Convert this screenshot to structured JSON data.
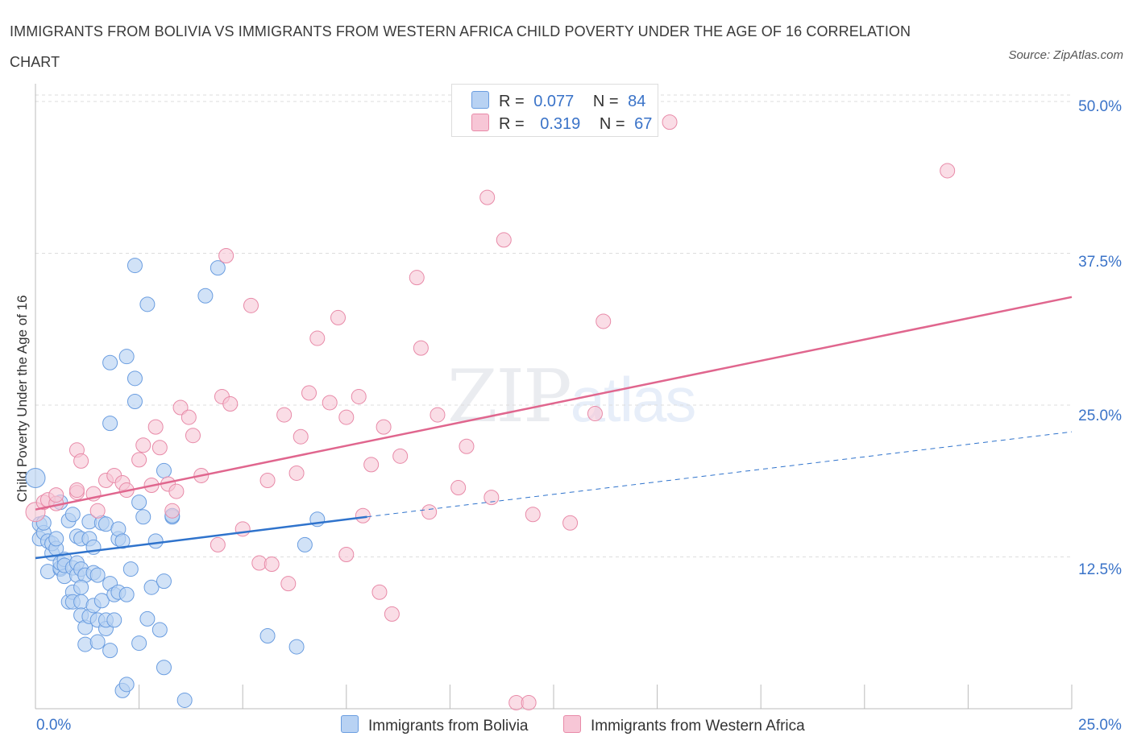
{
  "header": {
    "title": "IMMIGRANTS FROM BOLIVIA VS IMMIGRANTS FROM WESTERN AFRICA CHILD POVERTY UNDER THE AGE OF 16 CORRELATION CHART",
    "source": "Source: ZipAtlas.com"
  },
  "watermark": {
    "zip": "ZIP",
    "atlas": "atlas"
  },
  "legend": {
    "r_label": "R =",
    "n_label": "N =",
    "bolivia": {
      "r": "0.077",
      "n": "84"
    },
    "wafrica": {
      "r": "0.319",
      "n": "67"
    }
  },
  "bottom_legend": {
    "bolivia": "Immigrants from Bolivia",
    "wafrica": "Immigrants from Western Africa"
  },
  "colors": {
    "bolivia_fill": "#b8d2f3",
    "bolivia_stroke": "#6a9de0",
    "bolivia_line": "#2f73cc",
    "wafrica_fill": "#f7c6d6",
    "wafrica_stroke": "#e88aa8",
    "wafrica_line": "#e0668e",
    "grid": "#dddddd",
    "tick_text": "#3a73c8"
  },
  "chart_data": {
    "type": "scatter",
    "title": "IMMIGRANTS FROM BOLIVIA VS IMMIGRANTS FROM WESTERN AFRICA CHILD POVERTY UNDER THE AGE OF 16 CORRELATION CHART",
    "xlabel": "",
    "ylabel": "Child Poverty Under the Age of 16",
    "xlim": [
      0,
      25
    ],
    "ylim": [
      0,
      50
    ],
    "x_tick_labels": [
      "0.0%",
      "25.0%"
    ],
    "y_tick_labels": [
      "12.5%",
      "25.0%",
      "37.5%",
      "50.0%"
    ],
    "y_ticks": [
      12.5,
      25,
      37.5,
      50
    ],
    "grid": true,
    "series": [
      {
        "name": "Immigrants from Bolivia",
        "color": "#6a9de0",
        "trend": {
          "x0": 0,
          "y0": 12.4,
          "x1": 8,
          "y1": 15.8,
          "dashed_to_x": 25,
          "dashed_to_y": 22.8
        },
        "points": [
          [
            0.0,
            19.0
          ],
          [
            0.1,
            15.2
          ],
          [
            0.1,
            14.0
          ],
          [
            0.2,
            14.5
          ],
          [
            0.2,
            15.3
          ],
          [
            0.3,
            13.8
          ],
          [
            0.3,
            11.3
          ],
          [
            0.4,
            12.8
          ],
          [
            0.4,
            13.6
          ],
          [
            0.5,
            13.2
          ],
          [
            0.5,
            14.0
          ],
          [
            0.6,
            11.5
          ],
          [
            0.6,
            11.6
          ],
          [
            0.6,
            12.0
          ],
          [
            0.6,
            17.0
          ],
          [
            0.7,
            10.9
          ],
          [
            0.7,
            12.3
          ],
          [
            0.7,
            11.8
          ],
          [
            0.8,
            8.8
          ],
          [
            0.8,
            15.5
          ],
          [
            0.9,
            9.6
          ],
          [
            0.9,
            11.6
          ],
          [
            0.9,
            8.8
          ],
          [
            0.9,
            16.0
          ],
          [
            1.0,
            11.0
          ],
          [
            1.0,
            12.0
          ],
          [
            1.0,
            14.2
          ],
          [
            1.1,
            8.8
          ],
          [
            1.1,
            11.5
          ],
          [
            1.1,
            14.0
          ],
          [
            1.2,
            11.0
          ],
          [
            1.1,
            10.0
          ],
          [
            1.1,
            7.7
          ],
          [
            1.2,
            6.7
          ],
          [
            1.2,
            5.3
          ],
          [
            1.3,
            15.4
          ],
          [
            1.3,
            7.6
          ],
          [
            1.4,
            11.2
          ],
          [
            1.3,
            14.0
          ],
          [
            1.4,
            13.3
          ],
          [
            1.4,
            8.5
          ],
          [
            1.5,
            11.0
          ],
          [
            1.5,
            5.5
          ],
          [
            1.5,
            7.3
          ],
          [
            1.6,
            15.3
          ],
          [
            1.6,
            8.9
          ],
          [
            1.7,
            15.2
          ],
          [
            1.7,
            6.6
          ],
          [
            1.7,
            7.3
          ],
          [
            1.8,
            28.5
          ],
          [
            1.8,
            23.5
          ],
          [
            1.8,
            4.8
          ],
          [
            1.8,
            10.3
          ],
          [
            1.9,
            9.4
          ],
          [
            1.9,
            7.3
          ],
          [
            2.0,
            9.6
          ],
          [
            2.0,
            14.0
          ],
          [
            2.0,
            14.8
          ],
          [
            2.1,
            13.8
          ],
          [
            2.1,
            1.5
          ],
          [
            2.2,
            29.0
          ],
          [
            2.2,
            9.4
          ],
          [
            2.2,
            2.0
          ],
          [
            2.3,
            11.5
          ],
          [
            2.4,
            36.5
          ],
          [
            2.4,
            25.3
          ],
          [
            2.4,
            27.2
          ],
          [
            2.5,
            17.0
          ],
          [
            2.5,
            5.4
          ],
          [
            2.6,
            15.8
          ],
          [
            2.7,
            33.3
          ],
          [
            2.7,
            7.4
          ],
          [
            2.8,
            10.0
          ],
          [
            2.9,
            13.8
          ],
          [
            3.0,
            6.5
          ],
          [
            3.1,
            10.5
          ],
          [
            3.1,
            3.4
          ],
          [
            3.1,
            19.6
          ],
          [
            3.3,
            15.8
          ],
          [
            3.3,
            15.9
          ],
          [
            3.6,
            0.7
          ],
          [
            4.1,
            34.0
          ],
          [
            4.4,
            36.3
          ],
          [
            5.6,
            6.0
          ],
          [
            6.3,
            5.1
          ],
          [
            6.5,
            13.5
          ],
          [
            6.8,
            15.6
          ]
        ]
      },
      {
        "name": "Immigrants from Western Africa",
        "color": "#e88aa8",
        "trend": {
          "x0": 0,
          "y0": 16.4,
          "x1": 25,
          "y1": 33.9
        },
        "points": [
          [
            0.0,
            16.2
          ],
          [
            0.2,
            17.0
          ],
          [
            0.3,
            17.2
          ],
          [
            0.5,
            16.9
          ],
          [
            0.5,
            17.6
          ],
          [
            1.0,
            17.8
          ],
          [
            1.0,
            18.0
          ],
          [
            1.0,
            21.3
          ],
          [
            1.1,
            20.4
          ],
          [
            1.4,
            17.7
          ],
          [
            1.5,
            16.3
          ],
          [
            1.7,
            18.8
          ],
          [
            1.9,
            19.2
          ],
          [
            2.1,
            18.6
          ],
          [
            2.2,
            18.0
          ],
          [
            2.5,
            20.5
          ],
          [
            2.6,
            21.7
          ],
          [
            2.8,
            18.4
          ],
          [
            2.9,
            23.2
          ],
          [
            3.0,
            21.5
          ],
          [
            3.2,
            18.5
          ],
          [
            3.3,
            16.3
          ],
          [
            3.4,
            17.9
          ],
          [
            3.5,
            24.8
          ],
          [
            3.7,
            24.0
          ],
          [
            3.8,
            22.5
          ],
          [
            4.0,
            19.2
          ],
          [
            4.4,
            13.5
          ],
          [
            4.5,
            25.7
          ],
          [
            4.6,
            37.3
          ],
          [
            4.7,
            25.1
          ],
          [
            5.0,
            14.8
          ],
          [
            5.2,
            33.2
          ],
          [
            5.4,
            12.0
          ],
          [
            5.6,
            18.8
          ],
          [
            5.7,
            11.9
          ],
          [
            6.0,
            24.2
          ],
          [
            6.1,
            10.3
          ],
          [
            6.3,
            19.4
          ],
          [
            6.4,
            22.4
          ],
          [
            6.6,
            26.0
          ],
          [
            6.8,
            30.5
          ],
          [
            7.1,
            25.2
          ],
          [
            7.3,
            32.2
          ],
          [
            7.5,
            24.0
          ],
          [
            7.5,
            12.7
          ],
          [
            7.8,
            25.7
          ],
          [
            7.9,
            15.9
          ],
          [
            8.1,
            20.1
          ],
          [
            8.3,
            9.6
          ],
          [
            8.4,
            23.2
          ],
          [
            8.6,
            7.8
          ],
          [
            8.8,
            20.8
          ],
          [
            9.2,
            35.5
          ],
          [
            9.3,
            29.7
          ],
          [
            9.5,
            16.2
          ],
          [
            9.7,
            24.2
          ],
          [
            10.2,
            18.2
          ],
          [
            10.4,
            21.6
          ],
          [
            10.9,
            42.1
          ],
          [
            11.0,
            17.4
          ],
          [
            11.3,
            38.6
          ],
          [
            11.6,
            0.5
          ],
          [
            11.9,
            0.5
          ],
          [
            12.0,
            16.0
          ],
          [
            12.9,
            15.3
          ],
          [
            13.5,
            24.3
          ],
          [
            13.7,
            31.9
          ],
          [
            15.3,
            48.3
          ],
          [
            22.0,
            44.3
          ]
        ]
      }
    ]
  }
}
